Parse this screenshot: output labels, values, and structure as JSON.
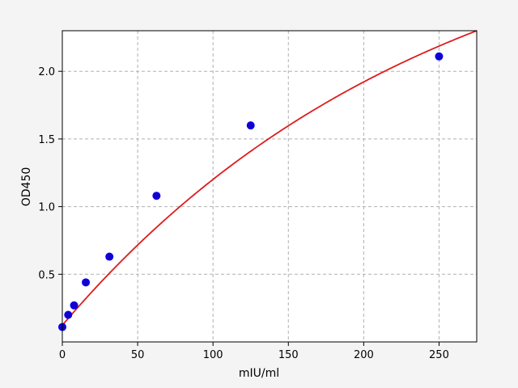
{
  "chart_data": {
    "type": "scatter",
    "title": "",
    "xlabel": "mIU/ml",
    "ylabel": "OD450",
    "xlim": [
      0,
      275
    ],
    "ylim": [
      0.0,
      2.3
    ],
    "xticks": [
      0,
      50,
      100,
      150,
      200,
      250
    ],
    "yticks": [
      0.5,
      1.0,
      1.5,
      2.0
    ],
    "xtick_labels": [
      "0",
      "50",
      "100",
      "150",
      "200",
      "250"
    ],
    "ytick_labels": [
      "0.5",
      "1.0",
      "1.5",
      "2.0"
    ],
    "grid": true,
    "series": [
      {
        "kind": "points",
        "x": [
          0,
          3.9,
          7.8,
          15.6,
          31.25,
          62.5,
          125,
          250
        ],
        "y": [
          0.11,
          0.2,
          0.27,
          0.44,
          0.63,
          1.08,
          1.6,
          2.11
        ]
      },
      {
        "kind": "fit-curve",
        "fit": {
          "A": 0.123,
          "B": 3.25,
          "C": 0.00403
        }
      }
    ],
    "colors": {
      "points": "#1400cc",
      "point_edge": "#0000ff",
      "fit": "#dd1c1c",
      "background": "#f4f4f4",
      "plot_area": "#ffffff"
    }
  }
}
